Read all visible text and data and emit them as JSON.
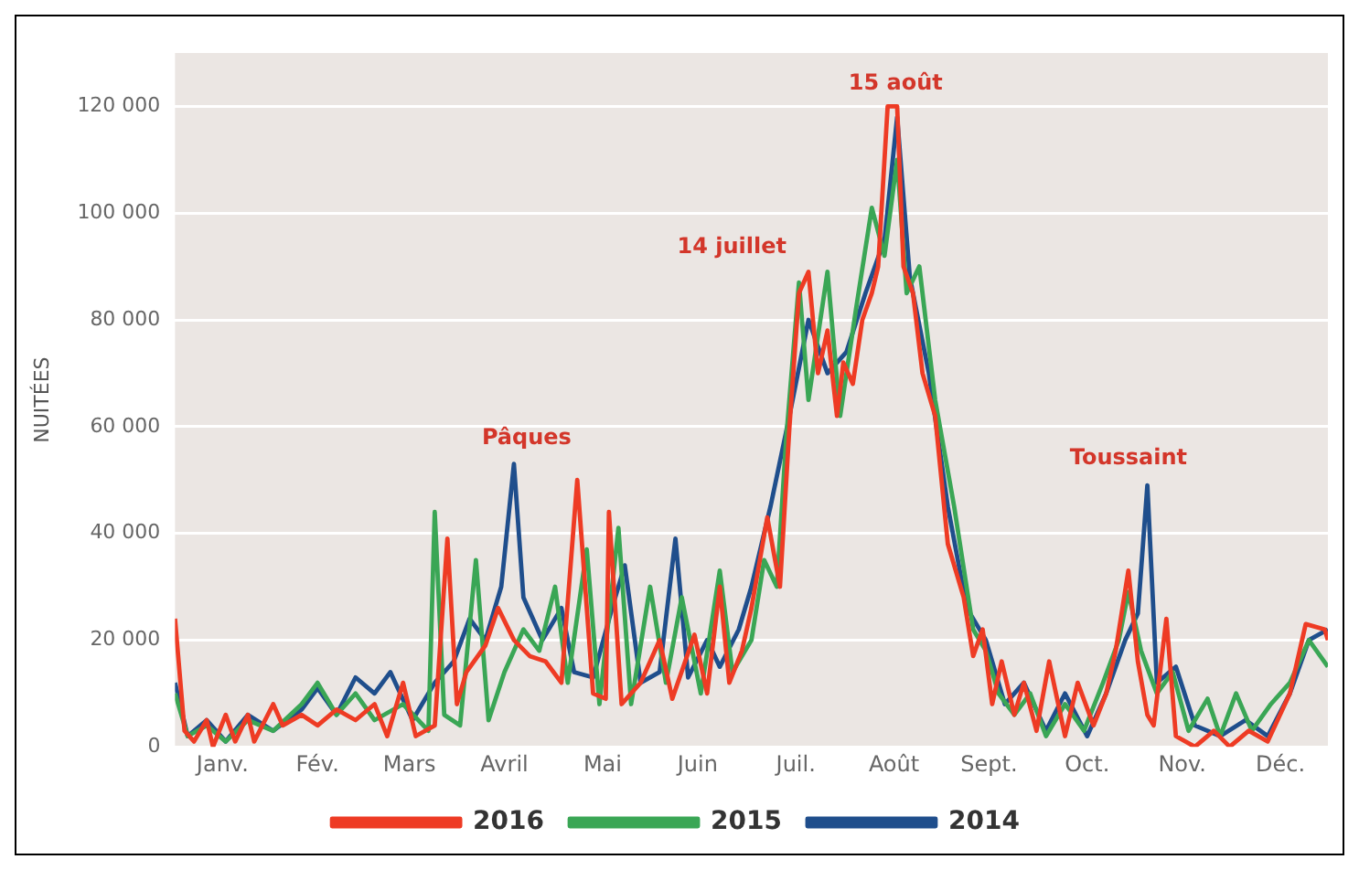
{
  "chart_data": {
    "type": "line",
    "ylabel": "NUITÉES",
    "xlim": [
      "--01-01",
      "--12-31"
    ],
    "ylim": [
      0,
      130000
    ],
    "xticks": [
      {
        "value": "--01-16",
        "label": "Janv."
      },
      {
        "value": "--02-15",
        "label": "Fév."
      },
      {
        "value": "--03-16",
        "label": "Mars"
      },
      {
        "value": "--04-15",
        "label": "Avril"
      },
      {
        "value": "--05-16",
        "label": "Mai"
      },
      {
        "value": "--06-15",
        "label": "Juin"
      },
      {
        "value": "--07-16",
        "label": "Juil."
      },
      {
        "value": "--08-16",
        "label": "Août"
      },
      {
        "value": "--09-15",
        "label": "Sept."
      },
      {
        "value": "--10-16",
        "label": "Oct."
      },
      {
        "value": "--11-15",
        "label": "Nov."
      },
      {
        "value": "--12-16",
        "label": "Déc."
      }
    ],
    "yticks": [
      {
        "value": 0,
        "label": "0"
      },
      {
        "value": 20000,
        "label": "20 000"
      },
      {
        "value": 40000,
        "label": "40 000"
      },
      {
        "value": 60000,
        "label": "60 000"
      },
      {
        "value": 80000,
        "label": "80 000"
      },
      {
        "value": 100000,
        "label": "100 000"
      },
      {
        "value": 120000,
        "label": "120 000"
      }
    ],
    "grid": "y",
    "legend": "bottom",
    "marker": "none",
    "line_style": "solid",
    "annotations": [
      "Pâques",
      "14 juillet",
      "15 août",
      "Toussaint"
    ],
    "series": [
      {
        "name": "2016",
        "color": "#ee3b24",
        "x": [
          "--01-01",
          "--01-04",
          "--01-07",
          "--01-11",
          "--01-13",
          "--01-17",
          "--01-20",
          "--01-24",
          "--01-26",
          "--02-01",
          "--02-04",
          "--02-10",
          "--02-15",
          "--02-21",
          "--02-27",
          "--03-05",
          "--03-09",
          "--03-14",
          "--03-18",
          "--03-24",
          "--03-28",
          "--03-31",
          "--04-03",
          "--04-09",
          "--04-13",
          "--04-18",
          "--04-23",
          "--04-28",
          "--05-03",
          "--05-08",
          "--05-13",
          "--05-17",
          "--05-18",
          "--05-22",
          "--05-28",
          "--06-03",
          "--06-07",
          "--06-14",
          "--06-18",
          "--06-22",
          "--06-25",
          "--06-29",
          "--07-02",
          "--07-07",
          "--07-11",
          "--07-14",
          "--07-17",
          "--07-20",
          "--07-23",
          "--07-26",
          "--07-29",
          "--07-31",
          "--08-03",
          "--08-06",
          "--08-09",
          "--08-11",
          "--08-14",
          "--08-17",
          "--08-19",
          "--08-22",
          "--08-25",
          "--08-29",
          "--09-02",
          "--09-07",
          "--09-10",
          "--09-13",
          "--09-16",
          "--09-19",
          "--09-23",
          "--09-26",
          "--09-30",
          "--10-04",
          "--10-09",
          "--10-13",
          "--10-18",
          "--10-22",
          "--10-25",
          "--10-29",
          "--11-01",
          "--11-04",
          "--11-06",
          "--11-10",
          "--11-13",
          "--11-19",
          "--11-25",
          "--11-30",
          "--12-06",
          "--12-12",
          "--12-19",
          "--12-24",
          "--12-30",
          "--12-31"
        ],
        "values": [
          24000,
          3000,
          1000,
          5000,
          0,
          6000,
          1000,
          6000,
          1000,
          8000,
          4000,
          6000,
          4000,
          7000,
          5000,
          8000,
          2000,
          12000,
          2000,
          4000,
          39000,
          8000,
          14000,
          19000,
          26000,
          20000,
          17000,
          16000,
          12000,
          50000,
          10000,
          9000,
          44000,
          8000,
          12000,
          20000,
          9000,
          21000,
          10000,
          30000,
          12000,
          18000,
          26000,
          43000,
          30000,
          60000,
          85000,
          89000,
          70000,
          78000,
          62000,
          72000,
          68000,
          80000,
          85000,
          90000,
          120000,
          120000,
          90000,
          85000,
          70000,
          62000,
          38000,
          28000,
          17000,
          22000,
          8000,
          16000,
          6000,
          12000,
          3000,
          16000,
          2000,
          12000,
          4000,
          10000,
          18000,
          33000,
          16000,
          6000,
          4000,
          24000,
          2000,
          0,
          3000,
          0,
          3000,
          1000,
          10000,
          23000,
          22000,
          20000
        ]
      },
      {
        "name": "2015",
        "color": "#3aa655",
        "x": [
          "--01-01",
          "--01-05",
          "--01-11",
          "--01-17",
          "--01-24",
          "--02-01",
          "--02-10",
          "--02-15",
          "--02-21",
          "--02-27",
          "--03-05",
          "--03-14",
          "--03-22",
          "--03-24",
          "--03-27",
          "--04-01",
          "--04-06",
          "--04-10",
          "--04-15",
          "--04-21",
          "--04-26",
          "--05-01",
          "--05-05",
          "--05-11",
          "--05-15",
          "--05-21",
          "--05-25",
          "--05-31",
          "--06-05",
          "--06-10",
          "--06-16",
          "--06-22",
          "--06-26",
          "--07-02",
          "--07-06",
          "--07-10",
          "--07-13",
          "--07-17",
          "--07-20",
          "--07-26",
          "--07-30",
          "--08-04",
          "--08-09",
          "--08-13",
          "--08-17",
          "--08-20",
          "--08-24",
          "--08-29",
          "--09-04",
          "--09-10",
          "--09-14",
          "--09-18",
          "--09-23",
          "--09-28",
          "--10-03",
          "--10-09",
          "--10-15",
          "--10-21",
          "--10-26",
          "--10-29",
          "--11-02",
          "--11-07",
          "--11-12",
          "--11-17",
          "--11-23",
          "--11-27",
          "--12-02",
          "--12-07",
          "--12-13",
          "--12-19",
          "--12-25",
          "--12-31"
        ],
        "values": [
          10000,
          2000,
          4000,
          1000,
          5000,
          3000,
          8000,
          12000,
          6000,
          10000,
          5000,
          8000,
          3000,
          44000,
          6000,
          4000,
          35000,
          5000,
          14000,
          22000,
          18000,
          30000,
          12000,
          37000,
          8000,
          41000,
          8000,
          30000,
          12000,
          28000,
          10000,
          33000,
          14000,
          20000,
          35000,
          30000,
          58000,
          87000,
          65000,
          89000,
          62000,
          82000,
          101000,
          92000,
          110000,
          85000,
          90000,
          65000,
          45000,
          22000,
          18000,
          10000,
          6000,
          10000,
          2000,
          8000,
          3000,
          12000,
          20000,
          29000,
          18000,
          10000,
          14000,
          3000,
          9000,
          2000,
          10000,
          3000,
          8000,
          12000,
          20000,
          15000
        ]
      },
      {
        "name": "2014",
        "color": "#1f4e8c",
        "x": [
          "--01-01",
          "--01-05",
          "--01-11",
          "--01-17",
          "--01-24",
          "--02-01",
          "--02-10",
          "--02-15",
          "--02-21",
          "--02-27",
          "--03-05",
          "--03-10",
          "--03-17",
          "--03-24",
          "--03-30",
          "--04-04",
          "--04-09",
          "--04-14",
          "--04-18",
          "--04-21",
          "--04-27",
          "--05-03",
          "--05-07",
          "--05-13",
          "--05-19",
          "--05-23",
          "--05-28",
          "--06-03",
          "--06-08",
          "--06-12",
          "--06-18",
          "--06-22",
          "--06-28",
          "--07-02",
          "--07-08",
          "--07-14",
          "--07-20",
          "--07-26",
          "--08-01",
          "--08-07",
          "--08-13",
          "--08-17",
          "--08-21",
          "--08-27",
          "--09-02",
          "--09-08",
          "--09-14",
          "--09-20",
          "--09-26",
          "--10-03",
          "--10-09",
          "--10-16",
          "--10-22",
          "--10-28",
          "--11-01",
          "--11-04",
          "--11-07",
          "--11-13",
          "--11-19",
          "--11-27",
          "--12-05",
          "--12-12",
          "--12-19",
          "--12-25",
          "--12-31"
        ],
        "values": [
          12000,
          2000,
          5000,
          1000,
          6000,
          3000,
          7000,
          11000,
          6000,
          13000,
          10000,
          14000,
          5000,
          12000,
          16000,
          24000,
          20000,
          30000,
          53000,
          28000,
          20000,
          26000,
          14000,
          13000,
          26000,
          34000,
          12000,
          14000,
          39000,
          13000,
          20000,
          15000,
          22000,
          30000,
          45000,
          62000,
          80000,
          70000,
          74000,
          85000,
          95000,
          118000,
          88000,
          70000,
          45000,
          26000,
          20000,
          8000,
          12000,
          3000,
          10000,
          2000,
          10000,
          20000,
          25000,
          49000,
          12000,
          15000,
          4000,
          2000,
          5000,
          2000,
          10000,
          20000,
          22000
        ]
      }
    ]
  }
}
